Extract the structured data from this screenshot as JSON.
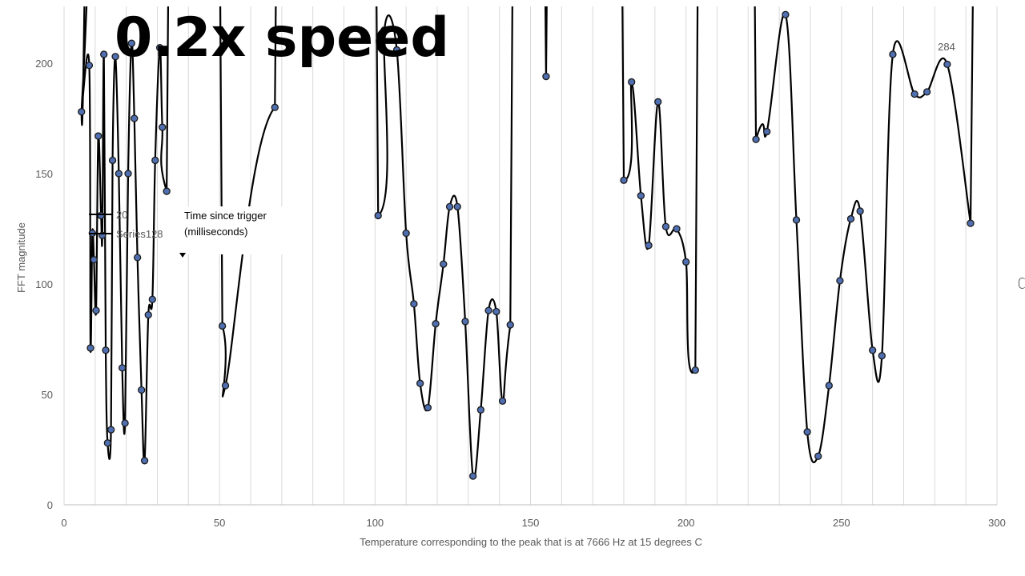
{
  "overlay": {
    "speed_label": "0.2x speed"
  },
  "tooltip": {
    "line1": "Time since trigger",
    "line2": "(milliseconds)"
  },
  "chart_data": {
    "type": "scatter",
    "xlabel": "Temperature corresponding to the peak that is at 7666 Hz at 15 degrees C",
    "ylabel": "FFT magnitude",
    "xlim": [
      0,
      300
    ],
    "ylim": [
      0,
      225
    ],
    "xticks": [
      0,
      50,
      100,
      150,
      200,
      250,
      300
    ],
    "yticks": [
      0,
      50,
      100,
      150,
      200
    ],
    "grid": "vertical",
    "legend_labels": [
      "20",
      "Series128"
    ],
    "data_labels": [
      "284"
    ],
    "colors": {
      "marker_fill": "#4f6fb0",
      "line": "#000000",
      "grid": "#d9d9d9",
      "axis": "#bfbfbf",
      "text": "#595959"
    },
    "series": [
      {
        "points": [
          [
            5.6,
            178
          ],
          [
            8.1,
            199
          ],
          [
            8.5,
            71
          ],
          [
            9.1,
            123
          ],
          [
            9.6,
            111
          ],
          [
            10.3,
            88
          ],
          [
            11.0,
            167
          ],
          [
            11.9,
            131
          ],
          [
            12.3,
            122
          ],
          [
            12.8,
            204
          ],
          [
            13.4,
            70
          ],
          [
            14.0,
            28
          ],
          [
            15.1,
            34
          ],
          [
            15.6,
            156
          ],
          [
            16.5,
            203
          ],
          [
            17.6,
            150
          ],
          [
            18.7,
            62
          ],
          [
            19.6,
            37
          ],
          [
            20.6,
            150
          ],
          [
            21.7,
            209
          ],
          [
            22.6,
            175
          ],
          [
            23.6,
            112
          ],
          [
            24.9,
            52
          ],
          [
            25.9,
            20
          ],
          [
            27.1,
            86
          ],
          [
            28.4,
            93
          ],
          [
            29.3,
            156
          ],
          [
            30.8,
            207
          ],
          [
            31.6,
            171
          ],
          [
            33.0,
            142
          ],
          [
            50.9,
            81
          ],
          [
            51.9,
            54
          ],
          [
            67.8,
            180
          ],
          [
            101.0,
            131
          ],
          [
            103.0,
            215
          ],
          [
            107.0,
            206
          ],
          [
            110.0,
            123
          ],
          [
            112.5,
            91
          ],
          [
            114.5,
            55
          ],
          [
            117.0,
            44
          ],
          [
            119.5,
            82
          ],
          [
            122.0,
            109
          ],
          [
            124.0,
            135
          ],
          [
            126.5,
            135
          ],
          [
            129.0,
            83
          ],
          [
            131.5,
            13
          ],
          [
            134.0,
            43
          ],
          [
            136.5,
            88
          ],
          [
            139.0,
            87.5
          ],
          [
            141.0,
            47
          ],
          [
            143.5,
            81.5
          ],
          [
            155.0,
            194
          ],
          [
            180.0,
            147
          ],
          [
            182.5,
            191.5
          ],
          [
            185.5,
            140
          ],
          [
            188.0,
            117.5
          ],
          [
            191.0,
            182.5
          ],
          [
            193.5,
            126
          ],
          [
            197.0,
            125
          ],
          [
            200.0,
            110
          ],
          [
            203.0,
            61
          ],
          [
            222.5,
            165.5
          ],
          [
            226.0,
            169
          ],
          [
            232.0,
            222
          ],
          [
            235.5,
            129
          ],
          [
            239.0,
            33
          ],
          [
            242.5,
            22
          ],
          [
            246.0,
            54
          ],
          [
            249.5,
            101.5
          ],
          [
            253.0,
            129.5
          ],
          [
            256.0,
            133
          ],
          [
            260.0,
            70
          ],
          [
            263.0,
            67.5
          ],
          [
            266.5,
            204
          ],
          [
            273.5,
            186
          ],
          [
            277.5,
            187
          ],
          [
            284.0,
            199.5
          ],
          [
            291.5,
            127.5
          ]
        ]
      }
    ]
  }
}
